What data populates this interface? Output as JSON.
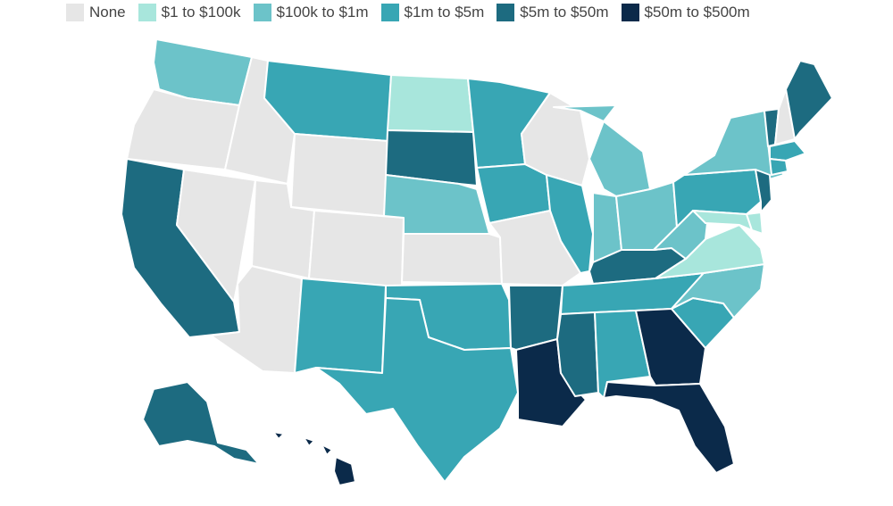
{
  "legend": {
    "items": [
      {
        "label": "None",
        "color": "#e6e6e6"
      },
      {
        "label": "$1 to $100k",
        "color": "#a8e6dc"
      },
      {
        "label": "$100k to $1m",
        "color": "#6cc3c9"
      },
      {
        "label": "$1m to $5m",
        "color": "#38a6b4"
      },
      {
        "label": "$5m to $50m",
        "color": "#1d6b80"
      },
      {
        "label": "$50m to $500m",
        "color": "#0b2a4a"
      }
    ]
  },
  "states": [
    {
      "id": "WA",
      "category": 2
    },
    {
      "id": "OR",
      "category": 0
    },
    {
      "id": "CA",
      "category": 4
    },
    {
      "id": "ID",
      "category": 0
    },
    {
      "id": "NV",
      "category": 0
    },
    {
      "id": "AZ",
      "category": 0
    },
    {
      "id": "UT",
      "category": 0
    },
    {
      "id": "MT",
      "category": 3
    },
    {
      "id": "WY",
      "category": 0
    },
    {
      "id": "CO",
      "category": 0
    },
    {
      "id": "NM",
      "category": 3
    },
    {
      "id": "ND",
      "category": 1
    },
    {
      "id": "SD",
      "category": 4
    },
    {
      "id": "NE",
      "category": 2
    },
    {
      "id": "KS",
      "category": 0
    },
    {
      "id": "OK",
      "category": 3
    },
    {
      "id": "TX",
      "category": 3
    },
    {
      "id": "MN",
      "category": 3
    },
    {
      "id": "IA",
      "category": 3
    },
    {
      "id": "MO",
      "category": 0
    },
    {
      "id": "AR",
      "category": 4
    },
    {
      "id": "LA",
      "category": 5
    },
    {
      "id": "WI",
      "category": 0
    },
    {
      "id": "IL",
      "category": 3
    },
    {
      "id": "MI",
      "category": 2
    },
    {
      "id": "IN",
      "category": 2
    },
    {
      "id": "OH",
      "category": 2
    },
    {
      "id": "KY",
      "category": 4
    },
    {
      "id": "TN",
      "category": 3
    },
    {
      "id": "MS",
      "category": 4
    },
    {
      "id": "AL",
      "category": 3
    },
    {
      "id": "GA",
      "category": 5
    },
    {
      "id": "FL",
      "category": 5
    },
    {
      "id": "SC",
      "category": 3
    },
    {
      "id": "NC",
      "category": 2
    },
    {
      "id": "VA",
      "category": 1
    },
    {
      "id": "WV",
      "category": 2
    },
    {
      "id": "PA",
      "category": 3
    },
    {
      "id": "NY",
      "category": 2
    },
    {
      "id": "VT",
      "category": 4
    },
    {
      "id": "NH",
      "category": 0
    },
    {
      "id": "ME",
      "category": 4
    },
    {
      "id": "MA",
      "category": 3
    },
    {
      "id": "CT",
      "category": 3
    },
    {
      "id": "NJ",
      "category": 4
    },
    {
      "id": "MD",
      "category": 1
    },
    {
      "id": "DE",
      "category": 1
    },
    {
      "id": "AK",
      "category": 4
    },
    {
      "id": "HI",
      "category": 5
    }
  ]
}
